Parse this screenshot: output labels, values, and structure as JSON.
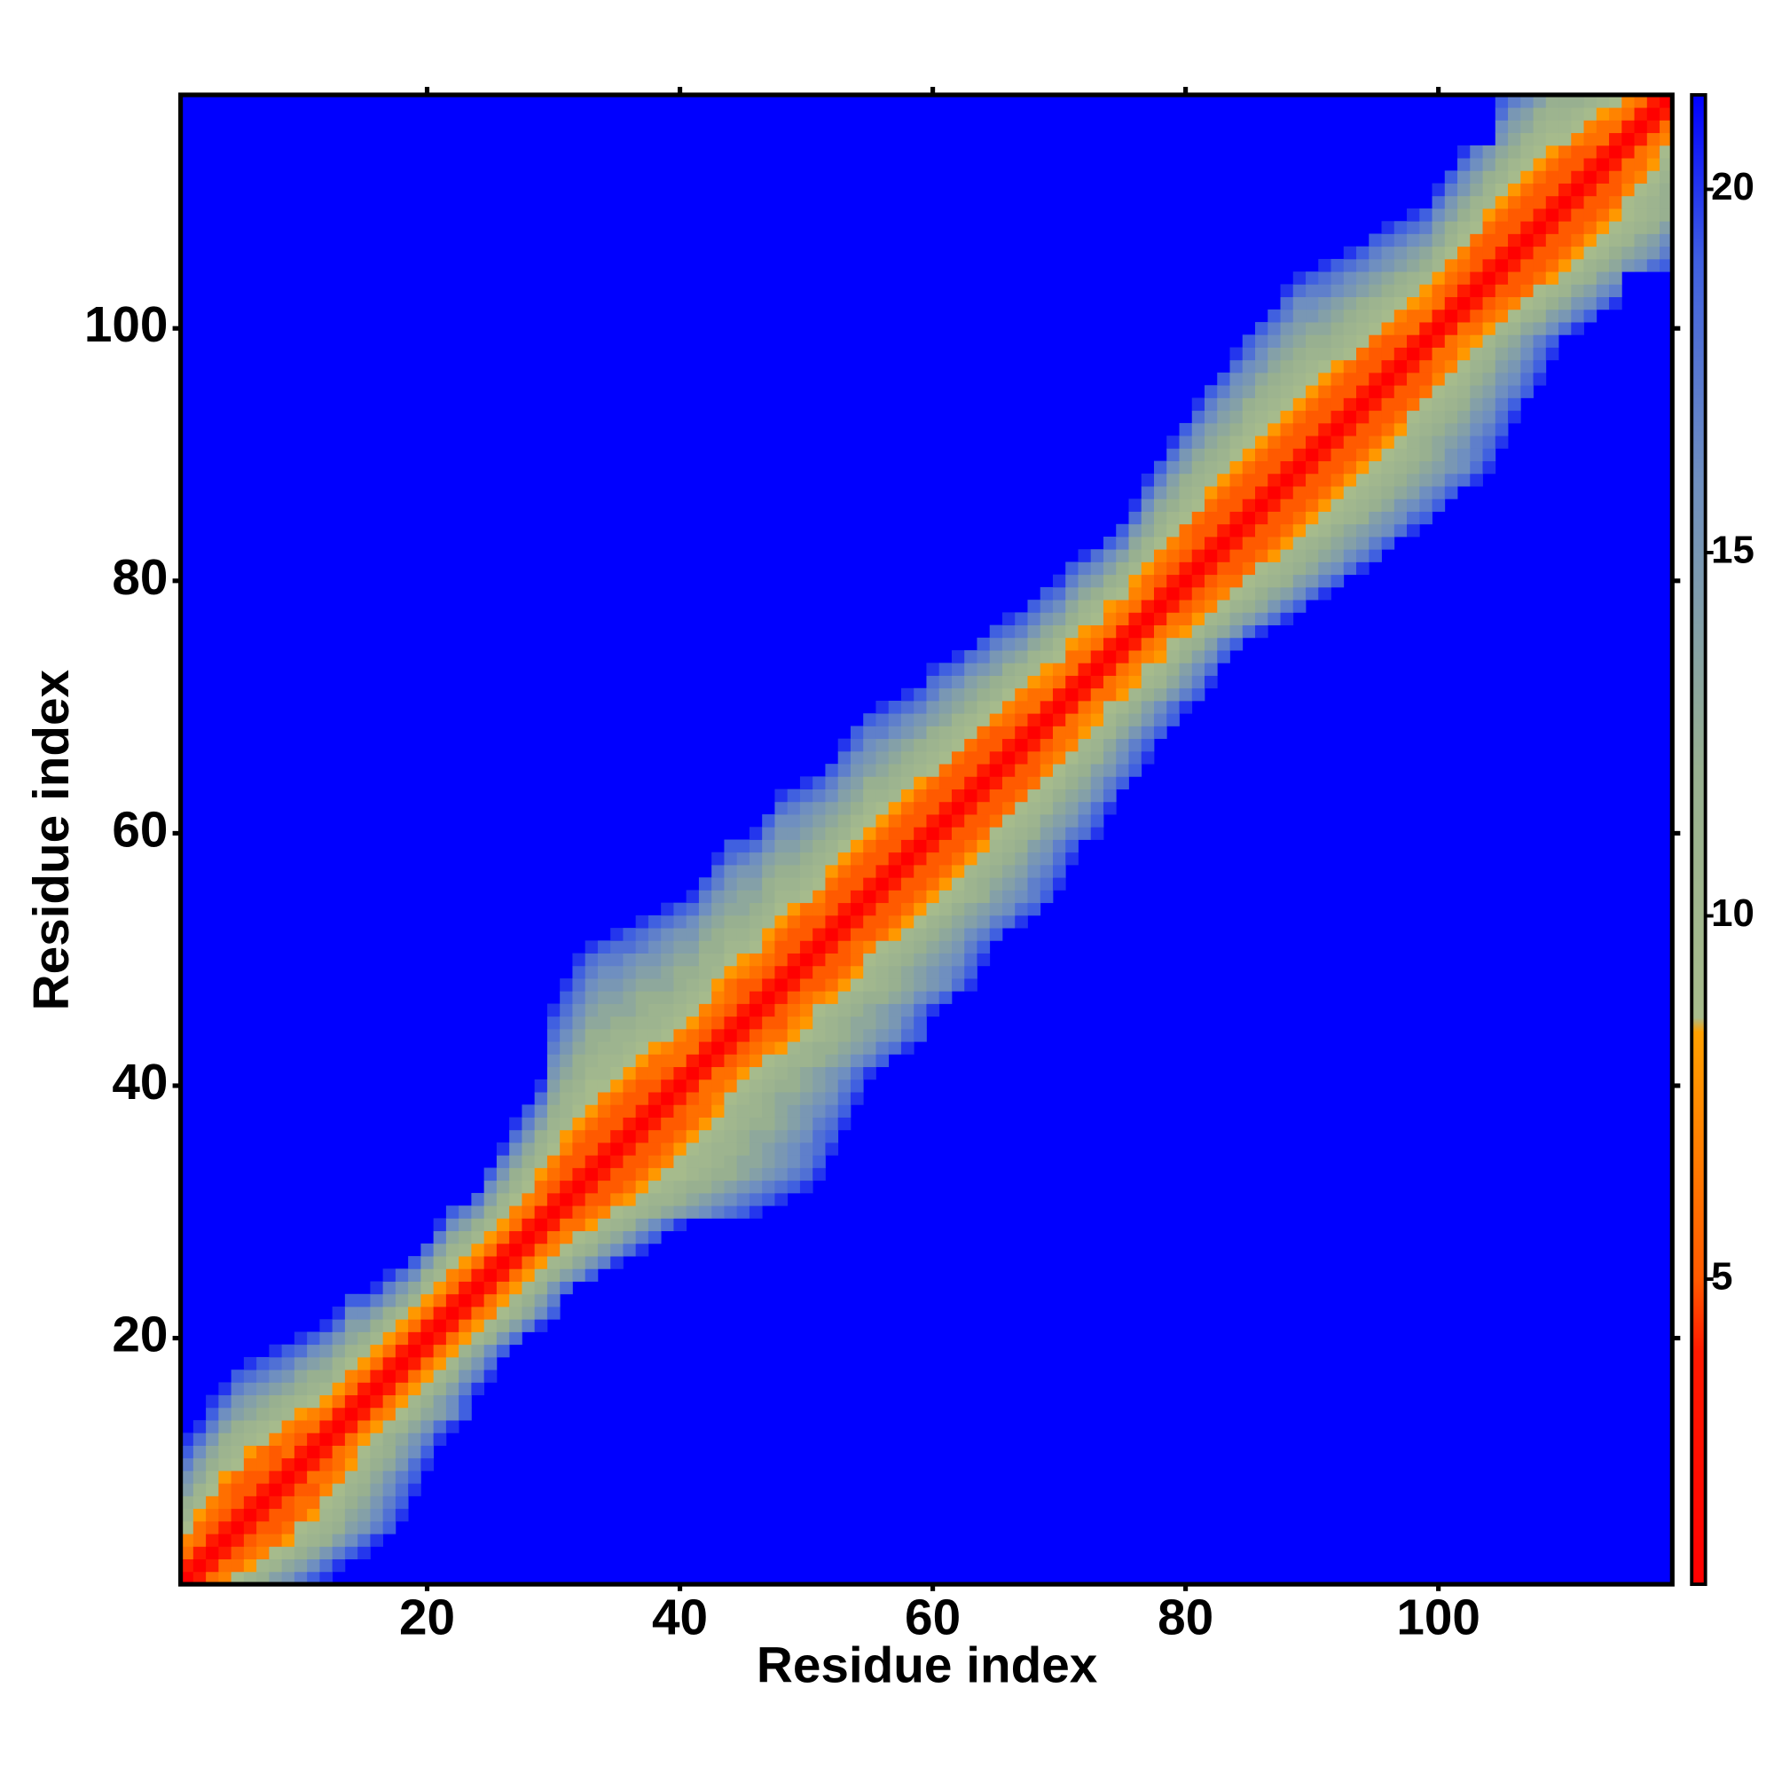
{
  "chart_data": {
    "type": "heatmap",
    "x_label": "Residue index",
    "y_label": "Residue index",
    "xlim": [
      0.5,
      118.5
    ],
    "ylim": [
      0.5,
      118.5
    ],
    "xticks": [
      20,
      40,
      60,
      80,
      100
    ],
    "yticks": [
      20,
      40,
      60,
      80,
      100
    ],
    "symmetric": true,
    "colorbar": {
      "zlim": [
        0.8,
        21.3
      ],
      "ticks": [
        5,
        10,
        15,
        20
      ],
      "colormap": [
        {
          "value": 0.8,
          "color": "#ff0000"
        },
        {
          "value": 4.0,
          "color": "#ff1a00"
        },
        {
          "value": 5.0,
          "color": "#ff5a00"
        },
        {
          "value": 8.4,
          "color": "#ffa000"
        },
        {
          "value": 8.6,
          "color": "#a8bc8c"
        },
        {
          "value": 12,
          "color": "#98b090"
        },
        {
          "value": 16,
          "color": "#6f8fc0"
        },
        {
          "value": 19,
          "color": "#4060e0"
        },
        {
          "value": 21.3,
          "color": "#0000ff"
        }
      ]
    },
    "rows": [
      [
        0,
        4,
        6,
        7,
        9,
        11,
        12,
        14,
        15,
        17,
        19,
        20
      ],
      [
        0,
        4,
        6,
        6,
        8,
        10,
        11,
        13,
        14,
        16,
        18,
        20
      ],
      [
        0,
        4,
        5,
        6,
        7,
        9,
        10,
        12,
        13,
        15,
        17,
        19,
        20
      ],
      [
        0,
        4,
        5,
        6,
        6,
        8,
        10,
        11,
        12,
        14,
        16,
        18,
        20
      ],
      [
        0,
        4,
        5,
        5,
        6,
        9,
        10,
        11,
        12,
        14,
        15,
        17,
        19
      ],
      [
        0,
        4,
        5,
        5,
        6,
        8,
        10,
        11,
        13,
        14,
        16,
        18,
        20
      ],
      [
        0,
        4,
        5,
        6,
        6,
        9,
        10,
        12,
        13,
        15,
        17,
        19
      ],
      [
        0,
        4,
        5,
        5,
        7,
        9,
        11,
        12,
        14,
        16,
        18,
        20
      ],
      [
        0,
        4,
        6,
        6,
        7,
        10,
        11,
        13,
        15,
        17,
        19
      ],
      [
        0,
        4,
        5,
        6,
        8,
        10,
        12,
        13,
        15,
        18,
        20
      ],
      [
        0,
        4,
        6,
        7,
        9,
        11,
        12,
        14,
        16,
        19
      ],
      [
        0,
        4,
        6,
        8,
        10,
        12,
        13,
        15,
        17,
        20
      ],
      [
        0,
        4,
        6,
        8,
        10,
        11,
        13,
        15,
        18,
        20
      ],
      [
        0,
        4,
        6,
        7,
        9,
        11,
        13,
        14,
        16,
        19
      ],
      [
        0,
        4,
        6,
        8,
        10,
        12,
        14,
        16,
        19
      ],
      [
        0,
        4,
        6,
        8,
        10,
        12,
        14,
        17,
        20
      ],
      [
        0,
        4,
        6,
        8,
        10,
        12,
        15,
        17,
        20
      ],
      [
        0,
        4,
        6,
        8,
        10,
        13,
        15,
        18
      ],
      [
        0,
        4,
        6,
        8,
        11,
        13,
        16,
        19
      ],
      [
        0,
        4,
        6,
        8,
        10,
        12,
        15,
        18
      ],
      [
        0,
        4,
        6,
        8,
        10,
        12,
        14,
        17,
        20
      ],
      [
        0,
        4,
        6,
        7,
        9,
        11,
        13,
        16,
        19
      ],
      [
        0,
        4,
        6,
        8,
        10,
        12,
        14,
        17
      ],
      [
        0,
        4,
        6,
        8,
        10,
        12,
        15,
        18
      ],
      [
        0,
        4,
        6,
        8,
        10,
        12,
        14,
        16,
        19
      ],
      [
        0,
        4,
        6,
        8,
        10,
        11,
        13,
        15,
        17,
        20
      ],
      [
        0,
        4,
        6,
        7,
        9,
        11,
        12,
        14,
        16,
        18,
        20
      ],
      [
        0,
        4,
        6,
        7,
        9,
        10,
        12,
        13,
        15,
        17,
        19
      ],
      [
        0,
        4,
        6,
        6,
        8,
        10,
        11,
        12,
        14,
        16,
        18,
        20
      ],
      [
        0,
        4,
        5,
        6,
        7,
        9,
        10,
        11,
        12,
        13,
        14,
        15,
        16,
        17,
        18,
        19,
        20
      ],
      [
        0,
        4,
        5,
        5,
        7,
        8,
        10,
        11,
        11,
        12,
        13,
        14,
        15,
        16,
        17,
        18,
        19,
        20
      ],
      [
        0,
        4,
        5,
        5,
        6,
        8,
        9,
        10,
        11,
        12,
        12,
        13,
        14,
        15,
        16,
        17,
        18,
        19,
        20
      ],
      [
        0,
        4,
        5,
        5,
        6,
        8,
        9,
        9,
        10,
        11,
        12,
        12,
        13,
        14,
        15,
        16,
        17,
        18,
        20
      ],
      [
        0,
        4,
        5,
        5,
        6,
        7,
        9,
        10,
        10,
        11,
        12,
        13,
        13,
        14,
        15,
        16,
        17,
        19
      ],
      [
        0,
        4,
        5,
        5,
        6,
        8,
        9,
        10,
        11,
        11,
        12,
        13,
        14,
        15,
        16,
        17,
        18,
        20
      ],
      [
        0,
        4,
        5,
        5,
        6,
        8,
        9,
        10,
        11,
        12,
        13,
        13,
        14,
        15,
        16,
        18,
        19
      ],
      [
        0,
        4,
        5,
        5,
        6,
        8,
        9,
        10,
        11,
        12,
        12,
        13,
        14,
        15,
        17,
        18,
        20
      ],
      [
        0,
        4,
        5,
        6,
        6,
        8,
        10,
        11,
        11,
        12,
        13,
        14,
        15,
        16,
        17,
        19
      ],
      [
        0,
        4,
        5,
        6,
        7,
        9,
        10,
        11,
        12,
        13,
        13,
        14,
        15,
        16,
        18,
        20
      ],
      [
        0,
        4,
        6,
        6,
        7,
        9,
        10,
        11,
        12,
        12,
        13,
        14,
        15,
        17,
        19
      ],
      [
        0,
        4,
        6,
        6,
        8,
        9,
        10,
        11,
        12,
        13,
        14,
        15,
        16,
        18,
        20
      ],
      [
        0,
        4,
        5,
        6,
        7,
        9,
        10,
        11,
        11,
        12,
        13,
        14,
        16,
        17,
        19
      ],
      [
        0,
        4,
        5,
        6,
        7,
        8,
        10,
        11,
        12,
        12,
        13,
        14,
        15,
        17,
        18,
        20
      ],
      [
        0,
        4,
        5,
        6,
        6,
        8,
        9,
        10,
        11,
        12,
        13,
        14,
        15,
        16,
        18,
        19
      ],
      [
        0,
        4,
        5,
        5,
        7,
        8,
        10,
        11,
        12,
        13,
        13,
        14,
        15,
        17,
        19
      ],
      [
        0,
        4,
        5,
        6,
        7,
        9,
        10,
        11,
        12,
        13,
        14,
        15,
        16,
        18,
        20
      ],
      [
        0,
        4,
        5,
        6,
        7,
        8,
        10,
        11,
        12,
        12,
        13,
        14,
        16,
        17,
        19
      ],
      [
        0,
        4,
        5,
        5,
        6,
        8,
        9,
        10,
        11,
        12,
        13,
        14,
        15,
        16,
        18,
        20
      ],
      [
        0,
        4,
        5,
        5,
        6,
        8,
        10,
        11,
        12,
        13,
        14,
        15,
        16,
        17,
        19
      ],
      [
        0,
        4,
        5,
        5,
        6,
        9,
        10,
        11,
        12,
        13,
        14,
        15,
        16,
        18,
        20
      ],
      [
        0,
        4,
        5,
        6,
        7,
        9,
        10,
        11,
        12,
        13,
        14,
        15,
        17,
        19
      ],
      [
        0,
        4,
        5,
        5,
        6,
        8,
        10,
        11,
        12,
        13,
        14,
        16,
        17,
        19
      ],
      [
        0,
        4,
        5,
        5,
        6,
        8,
        9,
        11,
        12,
        13,
        14,
        15,
        17,
        18,
        20
      ],
      [
        0,
        4,
        5,
        5,
        6,
        8,
        9,
        10,
        12,
        13,
        14,
        15,
        16,
        18,
        19
      ],
      [
        0,
        4,
        5,
        5,
        6,
        8,
        9,
        10,
        11,
        12,
        14,
        15,
        16,
        17,
        19
      ],
      [
        0,
        4,
        5,
        5,
        6,
        8,
        9,
        11,
        12,
        13,
        14,
        15,
        17,
        18,
        20
      ],
      [
        0,
        4,
        5,
        5,
        6,
        8,
        10,
        11,
        12,
        13,
        14,
        16,
        17,
        19
      ],
      [
        0,
        4,
        5,
        5,
        6,
        8,
        10,
        11,
        12,
        13,
        15,
        16,
        18,
        20
      ],
      [
        0,
        4,
        5,
        5,
        6,
        8,
        10,
        11,
        12,
        14,
        15,
        17,
        19
      ],
      [
        0,
        4,
        5,
        5,
        6,
        9,
        10,
        11,
        12,
        14,
        15,
        17,
        18,
        20
      ],
      [
        0,
        4,
        5,
        5,
        6,
        9,
        10,
        11,
        13,
        14,
        15,
        17,
        19
      ],
      [
        0,
        4,
        5,
        5,
        6,
        9,
        10,
        11,
        13,
        14,
        16,
        18,
        20
      ],
      [
        0,
        4,
        5,
        5,
        6,
        9,
        10,
        12,
        13,
        14,
        16,
        18
      ],
      [
        0,
        4,
        5,
        5,
        6,
        9,
        10,
        12,
        13,
        15,
        17,
        19
      ],
      [
        0,
        4,
        5,
        5,
        7,
        9,
        11,
        12,
        14,
        15,
        17,
        19
      ],
      [
        0,
        4,
        5,
        6,
        7,
        9,
        11,
        12,
        14,
        16,
        18,
        20
      ],
      [
        0,
        4,
        5,
        6,
        7,
        10,
        11,
        13,
        15,
        17,
        19
      ],
      [
        0,
        4,
        6,
        6,
        8,
        10,
        11,
        13,
        15,
        17,
        19
      ],
      [
        0,
        4,
        6,
        7,
        8,
        10,
        12,
        13,
        15,
        17,
        19
      ],
      [
        0,
        4,
        6,
        7,
        9,
        10,
        12,
        14,
        16,
        18,
        20
      ],
      [
        0,
        4,
        6,
        6,
        8,
        10,
        12,
        13,
        15,
        17,
        19
      ],
      [
        0,
        4,
        6,
        7,
        8,
        10,
        11,
        13,
        15,
        17,
        20
      ],
      [
        0,
        4,
        6,
        7,
        9,
        10,
        12,
        14,
        16,
        18
      ],
      [
        0,
        4,
        6,
        7,
        8,
        10,
        12,
        14,
        16,
        19
      ],
      [
        0,
        4,
        6,
        7,
        9,
        11,
        12,
        14,
        17,
        19
      ],
      [
        0,
        4,
        6,
        7,
        8,
        10,
        12,
        13,
        15,
        18,
        20
      ],
      [
        0,
        4,
        6,
        6,
        8,
        10,
        11,
        13,
        14,
        16,
        18,
        20
      ],
      [
        0,
        4,
        5,
        6,
        7,
        9,
        11,
        12,
        13,
        15,
        17,
        19
      ],
      [
        0,
        4,
        5,
        6,
        7,
        9,
        10,
        12,
        13,
        14,
        16,
        18,
        20
      ],
      [
        0,
        4,
        5,
        6,
        6,
        9,
        10,
        11,
        12,
        14,
        15,
        17,
        19
      ],
      [
        0,
        4,
        5,
        5,
        6,
        9,
        10,
        11,
        12,
        13,
        15,
        16,
        18,
        20
      ],
      [
        0,
        4,
        5,
        5,
        6,
        8,
        10,
        11,
        12,
        13,
        14,
        16,
        17,
        19
      ],
      [
        0,
        4,
        5,
        5,
        6,
        8,
        10,
        11,
        12,
        13,
        14,
        15,
        17,
        19
      ],
      [
        0,
        4,
        5,
        5,
        6,
        8,
        9,
        10,
        12,
        13,
        14,
        15,
        16,
        18,
        20
      ],
      [
        0,
        4,
        5,
        5,
        6,
        8,
        9,
        10,
        11,
        12,
        14,
        15,
        16,
        18,
        19
      ],
      [
        0,
        4,
        5,
        5,
        6,
        8,
        9,
        10,
        11,
        12,
        13,
        15,
        16,
        17,
        19
      ],
      [
        0,
        4,
        5,
        5,
        6,
        8,
        9,
        10,
        11,
        12,
        13,
        14,
        16,
        17,
        19
      ],
      [
        0,
        4,
        5,
        5,
        6,
        8,
        9,
        10,
        11,
        12,
        13,
        14,
        15,
        17,
        18,
        20
      ],
      [
        0,
        4,
        5,
        5,
        6,
        8,
        9,
        10,
        11,
        12,
        13,
        14,
        15,
        16,
        18,
        20
      ],
      [
        0,
        4,
        5,
        5,
        6,
        8,
        9,
        10,
        11,
        12,
        13,
        15,
        16,
        17,
        19
      ],
      [
        0,
        4,
        5,
        5,
        6,
        8,
        9,
        11,
        12,
        13,
        14,
        15,
        17,
        18,
        20
      ],
      [
        0,
        4,
        5,
        5,
        6,
        8,
        10,
        11,
        12,
        13,
        14,
        16,
        17,
        19
      ],
      [
        0,
        4,
        5,
        5,
        6,
        9,
        10,
        11,
        12,
        13,
        15,
        16,
        18,
        20
      ],
      [
        0,
        4,
        5,
        5,
        6,
        9,
        10,
        11,
        12,
        14,
        15,
        17,
        19
      ],
      [
        0,
        4,
        5,
        5,
        6,
        9,
        10,
        11,
        13,
        14,
        16,
        17,
        19
      ],
      [
        0,
        4,
        5,
        5,
        7,
        9,
        10,
        12,
        13,
        15,
        16,
        18,
        20
      ],
      [
        0,
        4,
        5,
        6,
        7,
        9,
        11,
        12,
        14,
        15,
        17,
        19
      ],
      [
        0,
        4,
        6,
        6,
        8,
        10,
        11,
        13,
        14,
        16,
        18,
        20
      ],
      [
        0,
        4,
        6,
        7,
        8,
        10,
        12,
        13,
        15,
        17,
        19
      ],
      [
        0,
        4,
        6,
        6,
        8,
        10,
        11,
        13,
        14,
        16,
        18,
        20
      ],
      [
        0,
        4,
        5,
        6,
        7,
        9,
        11,
        12,
        14,
        15,
        17,
        19
      ],
      [
        0,
        4,
        5,
        6,
        7,
        9,
        10,
        12,
        13,
        15,
        16,
        18,
        20
      ],
      [
        0,
        4,
        5,
        5,
        6,
        9,
        10,
        11,
        13,
        14,
        16,
        17
      ],
      [
        0,
        4,
        5,
        5,
        6,
        8,
        10,
        11,
        12,
        14,
        15
      ],
      [
        0,
        4,
        5,
        5,
        6,
        8,
        9,
        11,
        12,
        13,
        15,
        16,
        18,
        19
      ],
      [
        0,
        4,
        5,
        5,
        6,
        8,
        9,
        10,
        12,
        13,
        14,
        15,
        17
      ],
      [
        0,
        4,
        5,
        5,
        6,
        8,
        9,
        10,
        11,
        13,
        14,
        16
      ],
      [
        0,
        4,
        5,
        5,
        6,
        8,
        9,
        10,
        11,
        12,
        14
      ],
      [
        0,
        4,
        5,
        5,
        6,
        8,
        9,
        10,
        11,
        12
      ],
      [
        0,
        4,
        5,
        5,
        6,
        9,
        10,
        11,
        12
      ],
      [
        0,
        4,
        5,
        5,
        7,
        9,
        10,
        12
      ],
      [
        0,
        4,
        5,
        6,
        7,
        9,
        11
      ],
      [
        0,
        4,
        6,
        6,
        8,
        10
      ],
      [
        0,
        4,
        6,
        7,
        9
      ],
      [
        0,
        4,
        6,
        7
      ],
      [
        0,
        4,
        6
      ],
      [
        0,
        4
      ],
      [
        0
      ]
    ]
  }
}
